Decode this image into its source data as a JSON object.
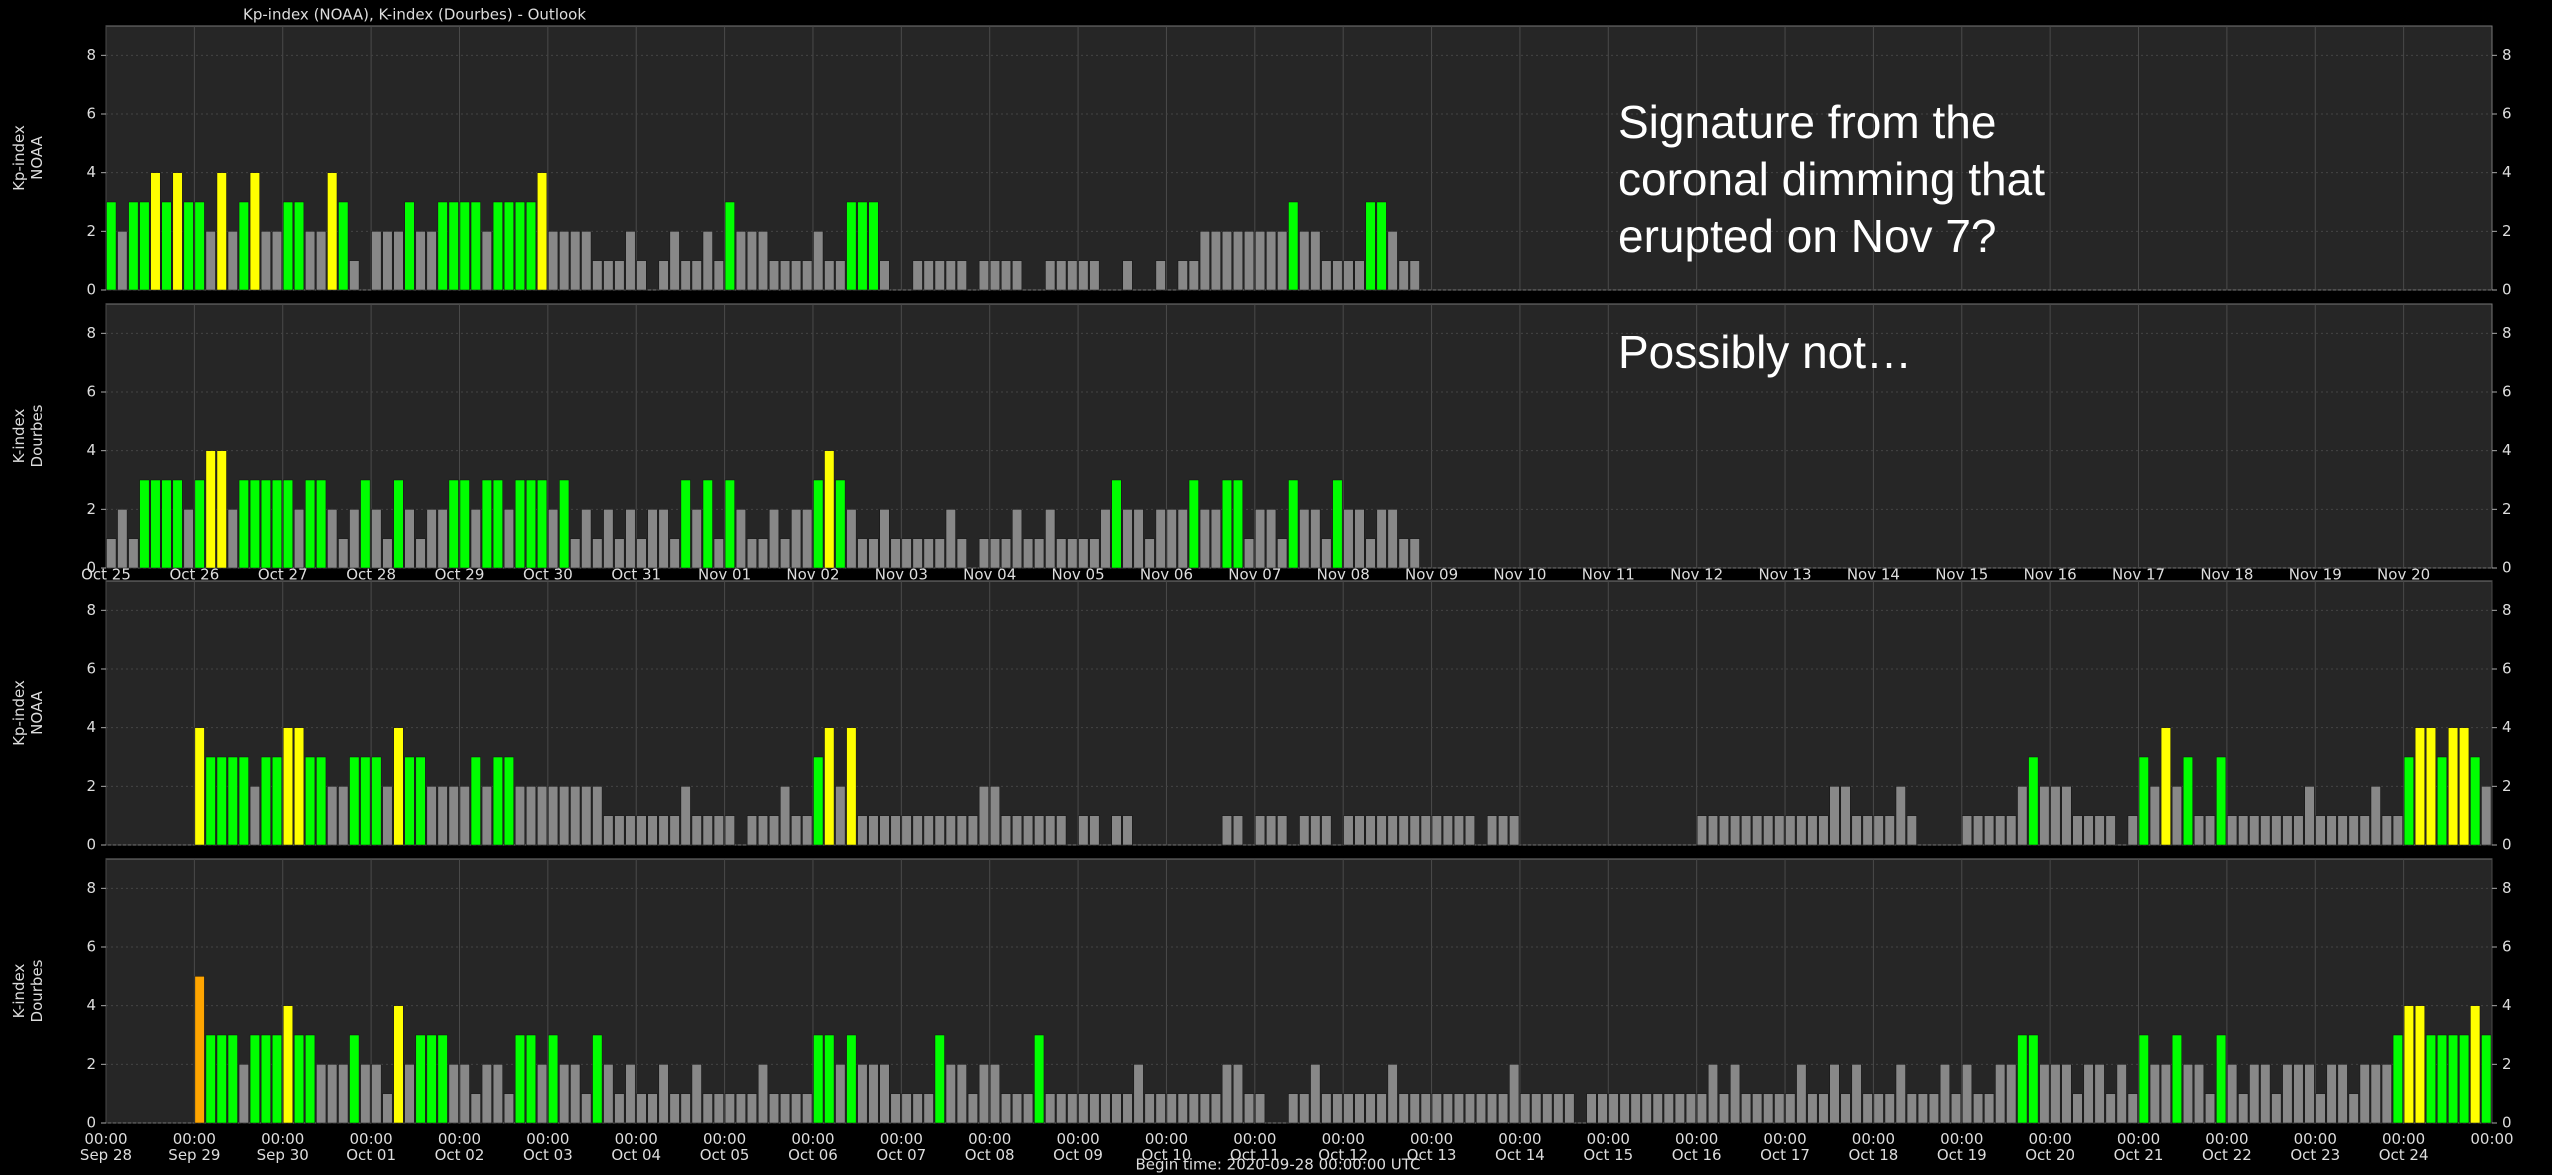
{
  "title": "Kp-index (NOAA), K-index (Dourbes) - Outlook",
  "annotations": [
    "Signature from the",
    "coronal dimming that",
    "erupted on Nov 7?",
    "Possibly not…"
  ],
  "footer": "Begin time: 2020-09-28 00:00:00 UTC",
  "chart_data": [
    {
      "type": "bar",
      "ylabel": [
        "Kp-index",
        "NOAA"
      ],
      "ylim": [
        0,
        9
      ],
      "yticks": [
        0,
        2,
        4,
        6,
        8
      ],
      "xlim": [
        0,
        216
      ],
      "grid": true,
      "level_colors": [
        "#888888",
        "#888888",
        "#888888",
        "#00ff00",
        "#ffff00",
        "#ffa500",
        "#ff4500",
        "#ff0000",
        "#c00000",
        "#800000"
      ],
      "values": [
        3,
        2,
        3,
        3,
        4,
        3,
        4,
        3,
        3,
        2,
        4,
        2,
        3,
        4,
        2,
        2,
        3,
        3,
        2,
        2,
        4,
        3,
        1,
        0,
        2,
        2,
        2,
        3,
        2,
        2,
        3,
        3,
        3,
        3,
        2,
        3,
        3,
        3,
        3,
        4,
        2,
        2,
        2,
        2,
        1,
        1,
        1,
        2,
        1,
        0,
        1,
        2,
        1,
        1,
        2,
        1,
        3,
        2,
        2,
        2,
        1,
        1,
        1,
        1,
        2,
        1,
        1,
        3,
        3,
        3,
        1,
        0,
        0,
        1,
        1,
        1,
        1,
        1,
        0,
        1,
        1,
        1,
        1,
        0,
        0,
        1,
        1,
        1,
        1,
        1,
        0,
        0,
        1,
        0,
        0,
        1,
        0,
        1,
        1,
        2,
        2,
        2,
        2,
        2,
        2,
        2,
        2,
        3,
        2,
        2,
        1,
        1,
        1,
        1,
        3,
        3,
        2,
        1,
        1
      ]
    },
    {
      "type": "bar",
      "ylabel": [
        "K-index",
        "Dourbes"
      ],
      "ylim": [
        0,
        9
      ],
      "yticks": [
        0,
        2,
        4,
        6,
        8
      ],
      "xlim": [
        0,
        216
      ],
      "grid": true,
      "level_colors": [
        "#888888",
        "#888888",
        "#888888",
        "#00ff00",
        "#ffff00",
        "#ffa500",
        "#ff4500",
        "#ff0000",
        "#c00000",
        "#800000"
      ],
      "xticks": [
        {
          "value": 0,
          "label": "Oct 25"
        },
        {
          "value": 8,
          "label": "Oct 26"
        },
        {
          "value": 16,
          "label": "Oct 27"
        },
        {
          "value": 24,
          "label": "Oct 28"
        },
        {
          "value": 32,
          "label": "Oct 29"
        },
        {
          "value": 40,
          "label": "Oct 30"
        },
        {
          "value": 48,
          "label": "Oct 31"
        },
        {
          "value": 56,
          "label": "Nov 01"
        },
        {
          "value": 64,
          "label": "Nov 02"
        },
        {
          "value": 72,
          "label": "Nov 03"
        },
        {
          "value": 80,
          "label": "Nov 04"
        },
        {
          "value": 88,
          "label": "Nov 05"
        },
        {
          "value": 96,
          "label": "Nov 06"
        },
        {
          "value": 104,
          "label": "Nov 07"
        },
        {
          "value": 112,
          "label": "Nov 08"
        },
        {
          "value": 120,
          "label": "Nov 09"
        },
        {
          "value": 128,
          "label": "Nov 10"
        },
        {
          "value": 136,
          "label": "Nov 11"
        },
        {
          "value": 144,
          "label": "Nov 12"
        },
        {
          "value": 152,
          "label": "Nov 13"
        },
        {
          "value": 160,
          "label": "Nov 14"
        },
        {
          "value": 168,
          "label": "Nov 15"
        },
        {
          "value": 176,
          "label": "Nov 16"
        },
        {
          "value": 184,
          "label": "Nov 17"
        },
        {
          "value": 192,
          "label": "Nov 18"
        },
        {
          "value": 200,
          "label": "Nov 19"
        },
        {
          "value": 208,
          "label": "Nov 20"
        }
      ],
      "values": [
        1,
        2,
        1,
        3,
        3,
        3,
        3,
        2,
        3,
        4,
        4,
        2,
        3,
        3,
        3,
        3,
        3,
        2,
        3,
        3,
        2,
        1,
        2,
        3,
        2,
        1,
        3,
        2,
        1,
        2,
        2,
        3,
        3,
        2,
        3,
        3,
        2,
        3,
        3,
        3,
        2,
        3,
        1,
        2,
        1,
        2,
        1,
        2,
        1,
        2,
        2,
        1,
        3,
        2,
        3,
        1,
        3,
        2,
        1,
        1,
        2,
        1,
        2,
        2,
        3,
        4,
        3,
        2,
        1,
        1,
        2,
        1,
        1,
        1,
        1,
        1,
        2,
        1,
        0,
        1,
        1,
        1,
        2,
        1,
        1,
        2,
        1,
        1,
        1,
        1,
        2,
        3,
        2,
        2,
        1,
        2,
        2,
        2,
        3,
        2,
        2,
        3,
        3,
        1,
        2,
        2,
        1,
        3,
        2,
        2,
        1,
        3,
        2,
        2,
        1,
        2,
        2,
        1,
        1
      ]
    },
    {
      "type": "bar",
      "ylabel": [
        "Kp-index",
        "NOAA"
      ],
      "ylim": [
        0,
        9
      ],
      "yticks": [
        0,
        2,
        4,
        6,
        8
      ],
      "xlim": [
        0,
        216
      ],
      "grid": true,
      "level_colors": [
        "#888888",
        "#888888",
        "#888888",
        "#00ff00",
        "#ffff00",
        "#ffa500",
        "#ff4500",
        "#ff0000",
        "#c00000",
        "#800000"
      ],
      "values": [
        null,
        null,
        null,
        null,
        null,
        null,
        null,
        null,
        4,
        3,
        3,
        3,
        3,
        2,
        3,
        3,
        4,
        4,
        3,
        3,
        2,
        2,
        3,
        3,
        3,
        2,
        4,
        3,
        3,
        2,
        2,
        2,
        2,
        3,
        2,
        3,
        3,
        2,
        2,
        2,
        2,
        2,
        2,
        2,
        2,
        1,
        1,
        1,
        1,
        1,
        1,
        1,
        2,
        1,
        1,
        1,
        1,
        0,
        1,
        1,
        1,
        2,
        1,
        1,
        3,
        4,
        2,
        4,
        1,
        1,
        1,
        1,
        1,
        1,
        1,
        1,
        1,
        1,
        1,
        2,
        2,
        1,
        1,
        1,
        1,
        1,
        1,
        0,
        1,
        1,
        0,
        1,
        1,
        0,
        0,
        0,
        0,
        0,
        0,
        0,
        0,
        1,
        1,
        0,
        1,
        1,
        1,
        0,
        1,
        1,
        1,
        0,
        1,
        1,
        1,
        1,
        1,
        1,
        1,
        1,
        1,
        1,
        1,
        1,
        0,
        1,
        1,
        1,
        0,
        0,
        0,
        0,
        0,
        0,
        0,
        0,
        0,
        0,
        0,
        0,
        0,
        0,
        0,
        0,
        1,
        1,
        1,
        1,
        1,
        1,
        1,
        1,
        1,
        1,
        1,
        1,
        2,
        2,
        1,
        1,
        1,
        1,
        2,
        1,
        0,
        0,
        0,
        0,
        1,
        1,
        1,
        1,
        1,
        2,
        3,
        2,
        2,
        2,
        1,
        1,
        1,
        1,
        0,
        1,
        3,
        2,
        4,
        2,
        3,
        1,
        1,
        3,
        1,
        1,
        1,
        1,
        1,
        1,
        1,
        2,
        1,
        1,
        1,
        1,
        1,
        2,
        1,
        1,
        3,
        4,
        4,
        3,
        4,
        4,
        3,
        2
      ]
    },
    {
      "type": "bar",
      "ylabel": [
        "K-index",
        "Dourbes"
      ],
      "ylim": [
        0,
        9
      ],
      "yticks": [
        0,
        2,
        4,
        6,
        8
      ],
      "xlim": [
        0,
        216
      ],
      "grid": true,
      "level_colors": [
        "#888888",
        "#888888",
        "#888888",
        "#00ff00",
        "#ffff00",
        "#ffa500",
        "#ff4500",
        "#ff0000",
        "#c00000",
        "#800000"
      ],
      "xticks": [
        {
          "value": 0,
          "time": "00:00",
          "label": "Sep 28"
        },
        {
          "value": 8,
          "time": "00:00",
          "label": "Sep 29"
        },
        {
          "value": 16,
          "time": "00:00",
          "label": "Sep 30"
        },
        {
          "value": 24,
          "time": "00:00",
          "label": "Oct 01"
        },
        {
          "value": 32,
          "time": "00:00",
          "label": "Oct 02"
        },
        {
          "value": 40,
          "time": "00:00",
          "label": "Oct 03"
        },
        {
          "value": 48,
          "time": "00:00",
          "label": "Oct 04"
        },
        {
          "value": 56,
          "time": "00:00",
          "label": "Oct 05"
        },
        {
          "value": 64,
          "time": "00:00",
          "label": "Oct 06"
        },
        {
          "value": 72,
          "time": "00:00",
          "label": "Oct 07"
        },
        {
          "value": 80,
          "time": "00:00",
          "label": "Oct 08"
        },
        {
          "value": 88,
          "time": "00:00",
          "label": "Oct 09"
        },
        {
          "value": 96,
          "time": "00:00",
          "label": "Oct 10"
        },
        {
          "value": 104,
          "time": "00:00",
          "label": "Oct 11"
        },
        {
          "value": 112,
          "time": "00:00",
          "label": "Oct 12"
        },
        {
          "value": 120,
          "time": "00:00",
          "label": "Oct 13"
        },
        {
          "value": 128,
          "time": "00:00",
          "label": "Oct 14"
        },
        {
          "value": 136,
          "time": "00:00",
          "label": "Oct 15"
        },
        {
          "value": 144,
          "time": "00:00",
          "label": "Oct 16"
        },
        {
          "value": 152,
          "time": "00:00",
          "label": "Oct 17"
        },
        {
          "value": 160,
          "time": "00:00",
          "label": "Oct 18"
        },
        {
          "value": 168,
          "time": "00:00",
          "label": "Oct 19"
        },
        {
          "value": 176,
          "time": "00:00",
          "label": "Oct 20"
        },
        {
          "value": 184,
          "time": "00:00",
          "label": "Oct 21"
        },
        {
          "value": 192,
          "time": "00:00",
          "label": "Oct 22"
        },
        {
          "value": 200,
          "time": "00:00",
          "label": "Oct 23"
        },
        {
          "value": 208,
          "time": "00:00",
          "label": "Oct 24"
        },
        {
          "value": 216,
          "time": "00:00"
        }
      ],
      "values": [
        null,
        null,
        null,
        null,
        null,
        null,
        null,
        null,
        5,
        3,
        3,
        3,
        2,
        3,
        3,
        3,
        4,
        3,
        3,
        2,
        2,
        2,
        3,
        2,
        2,
        1,
        4,
        2,
        3,
        3,
        3,
        2,
        2,
        1,
        2,
        2,
        1,
        3,
        3,
        2,
        3,
        2,
        2,
        1,
        3,
        2,
        1,
        2,
        1,
        1,
        2,
        1,
        1,
        2,
        1,
        1,
        1,
        1,
        1,
        2,
        1,
        1,
        1,
        1,
        3,
        3,
        2,
        3,
        2,
        2,
        2,
        1,
        1,
        1,
        1,
        3,
        2,
        2,
        1,
        2,
        2,
        1,
        1,
        1,
        3,
        1,
        1,
        1,
        1,
        1,
        1,
        1,
        1,
        2,
        1,
        1,
        1,
        1,
        1,
        1,
        1,
        2,
        2,
        1,
        1,
        0,
        0,
        1,
        1,
        2,
        1,
        1,
        1,
        1,
        1,
        1,
        2,
        1,
        1,
        1,
        1,
        1,
        1,
        1,
        1,
        1,
        1,
        2,
        1,
        1,
        1,
        1,
        1,
        0,
        1,
        1,
        1,
        1,
        1,
        1,
        1,
        1,
        1,
        1,
        1,
        2,
        1,
        2,
        1,
        1,
        1,
        1,
        1,
        2,
        1,
        1,
        2,
        1,
        2,
        1,
        1,
        1,
        2,
        1,
        1,
        1,
        2,
        1,
        2,
        1,
        1,
        2,
        2,
        3,
        3,
        2,
        2,
        2,
        1,
        2,
        2,
        1,
        2,
        1,
        3,
        2,
        2,
        3,
        2,
        2,
        1,
        3,
        2,
        1,
        2,
        2,
        1,
        2,
        2,
        2,
        1,
        2,
        2,
        1,
        2,
        2,
        2,
        3,
        4,
        4,
        3,
        3,
        3,
        3,
        4,
        3
      ]
    }
  ]
}
